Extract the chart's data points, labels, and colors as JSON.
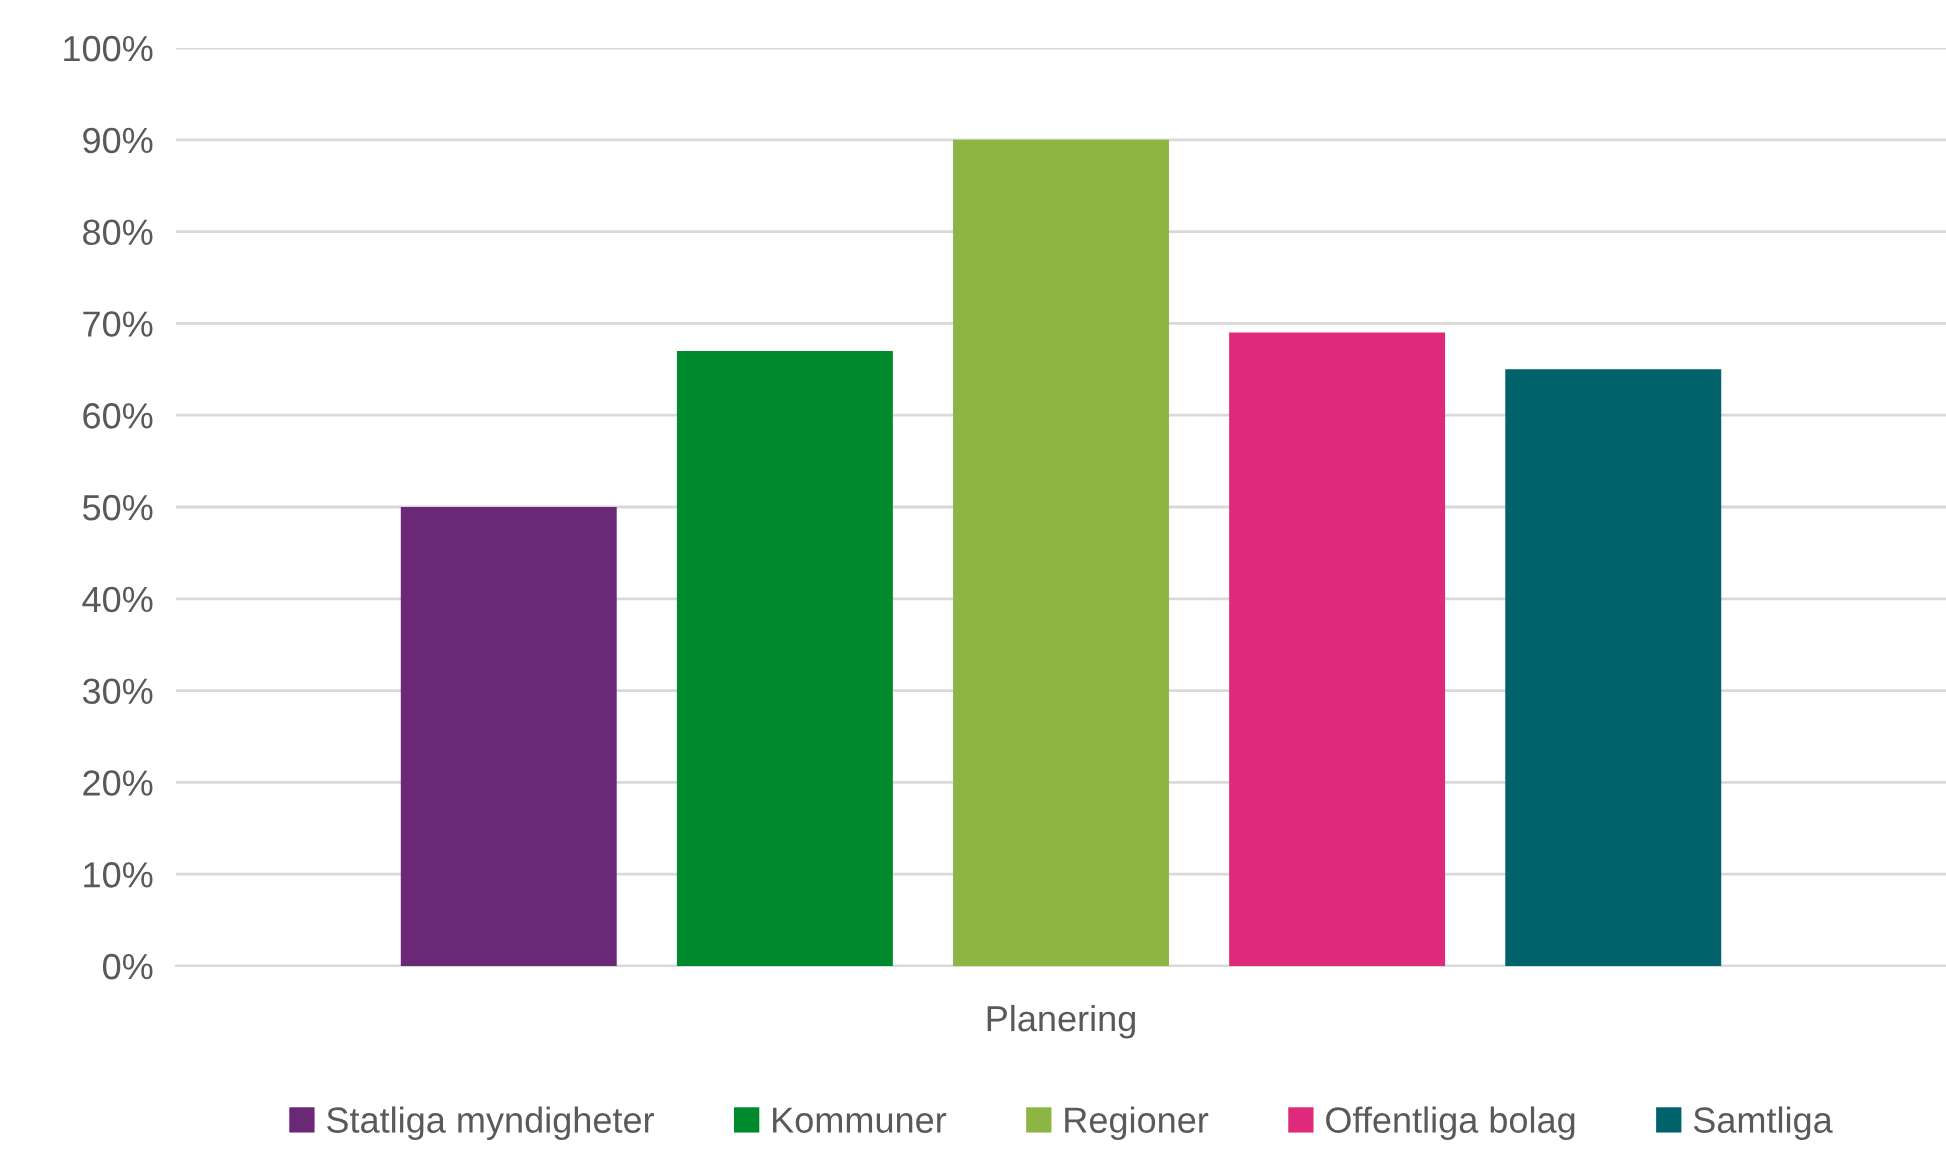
{
  "chart_data": {
    "type": "bar",
    "xlabel": null,
    "categories": [
      "Planering"
    ],
    "series": [
      {
        "name": "Statliga myndigheter",
        "color": "#6b2876",
        "values": [
          50
        ]
      },
      {
        "name": "Kommuner",
        "color": "#008a2e",
        "values": [
          67
        ]
      },
      {
        "name": "Regioner",
        "color": "#8db544",
        "values": [
          90
        ]
      },
      {
        "name": "Offentliga bolag",
        "color": "#df2a7b",
        "values": [
          69
        ]
      },
      {
        "name": "Samtliga",
        "color": "#00636b",
        "values": [
          65
        ]
      }
    ],
    "ylim": [
      0,
      100
    ],
    "yticks": [
      {
        "value": 0,
        "label": "0%"
      },
      {
        "value": 10,
        "label": "10%"
      },
      {
        "value": 20,
        "label": "20%"
      },
      {
        "value": 30,
        "label": "30%"
      },
      {
        "value": 40,
        "label": "40%"
      },
      {
        "value": 50,
        "label": "50%"
      },
      {
        "value": 60,
        "label": "60%"
      },
      {
        "value": 70,
        "label": "70%"
      },
      {
        "value": 80,
        "label": "80%"
      },
      {
        "value": 90,
        "label": "90%"
      },
      {
        "value": 100,
        "label": "100%"
      }
    ],
    "grid": "y",
    "legend": "bottom"
  }
}
